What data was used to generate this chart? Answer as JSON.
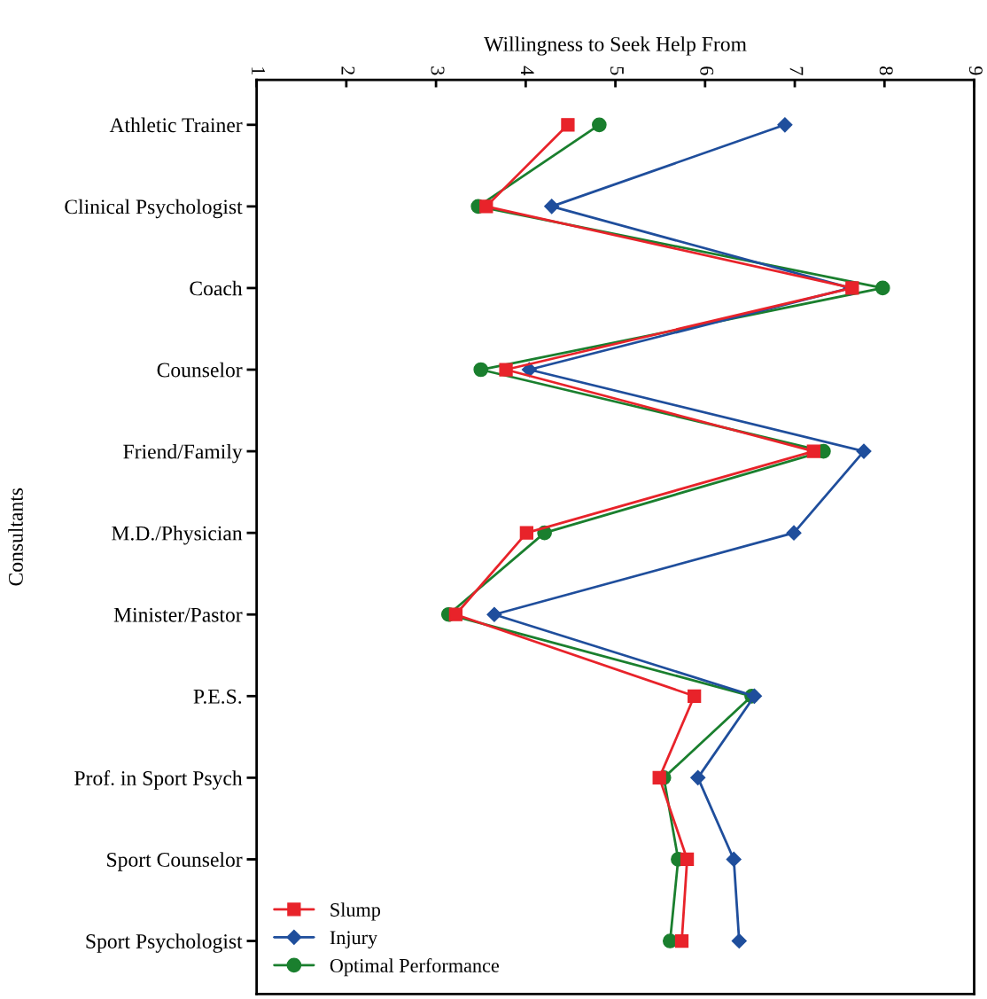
{
  "chart_data": {
    "type": "line",
    "orientation": "horizontal",
    "xlabel": "Willingness to Seek Help From",
    "ylabel": "Consultants",
    "categories": [
      "Athletic Trainer",
      "Clinical Psychologist",
      "Coach",
      "Counselor",
      "Friend/Family",
      "M.D./Physician",
      "Minister/Pastor",
      "P.E.S.",
      "Prof. in Sport Psych",
      "Sport Counselor",
      "Sport Psychologist"
    ],
    "xlim": [
      1,
      9
    ],
    "xticks": [
      1,
      2,
      3,
      4,
      5,
      6,
      7,
      8,
      9
    ],
    "grid": false,
    "legend": "bottom left",
    "line_style": "solid",
    "series": [
      {
        "name": "Slump",
        "color": "#e8232a",
        "marker": "square",
        "values": [
          4.47,
          3.56,
          7.64,
          3.78,
          7.21,
          4.01,
          3.22,
          5.88,
          5.49,
          5.8,
          5.74
        ]
      },
      {
        "name": "Injury",
        "color": "#1f4e9c",
        "marker": "diamond",
        "values": [
          6.89,
          4.29,
          7.62,
          4.04,
          7.77,
          6.99,
          3.65,
          6.55,
          5.92,
          6.32,
          6.38
        ]
      },
      {
        "name": "Optimal Performance",
        "color": "#1a7f2e",
        "marker": "circle",
        "values": [
          4.82,
          3.47,
          7.98,
          3.5,
          7.32,
          4.21,
          3.14,
          6.52,
          5.54,
          5.7,
          5.61
        ]
      }
    ]
  }
}
